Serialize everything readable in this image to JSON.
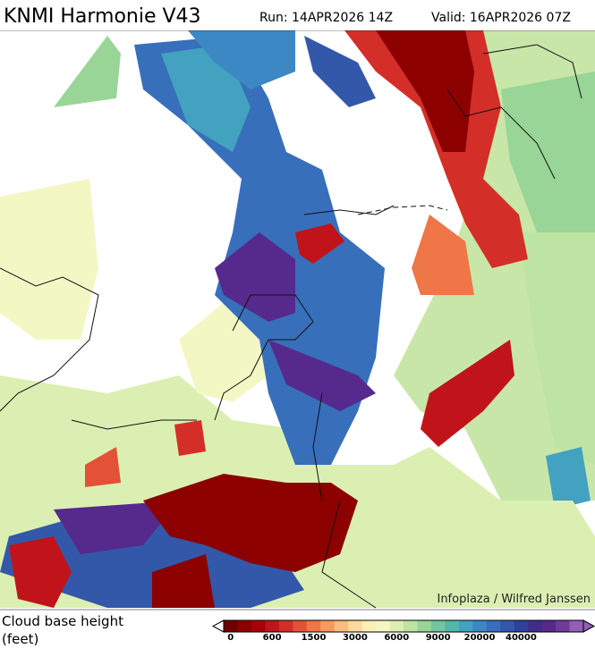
{
  "header": {
    "title": "KNMI Harmonie V43",
    "run": "Run: 14APR2026 14Z",
    "valid": "Valid: 16APR2026 07Z"
  },
  "credit": "Infoplaza / Wilfred Janssen",
  "legend": {
    "title": "Cloud base height",
    "unit": "(feet)",
    "colors": [
      "#6e0000",
      "#8c0000",
      "#a80008",
      "#c0141a",
      "#d42e28",
      "#e35236",
      "#ee7647",
      "#f49b5e",
      "#f8bd7c",
      "#fbd99a",
      "#fdeeb4",
      "#f3f7c4",
      "#dcefb2",
      "#bde4a2",
      "#98d596",
      "#72c59c",
      "#55b6aa",
      "#42a2bf",
      "#3b88c5",
      "#376fba",
      "#3358aa",
      "#30419a",
      "#3e2e8a",
      "#56298c",
      "#70399c",
      "#9060b6"
    ],
    "ticks": [
      "0",
      "600",
      "1500",
      "3000",
      "6000",
      "9000",
      "20000",
      "40000"
    ]
  }
}
